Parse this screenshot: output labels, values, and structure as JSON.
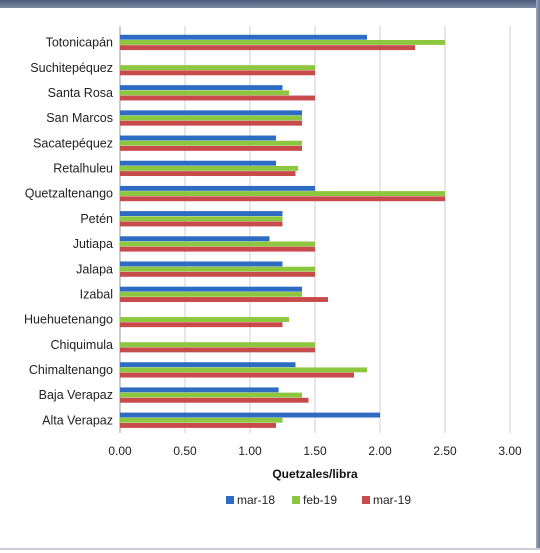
{
  "chart_data": {
    "type": "bar",
    "orientation": "horizontal",
    "categories": [
      "Totonicapán",
      "Suchitepéquez",
      "Santa Rosa",
      "San Marcos",
      "Sacatepéquez",
      "Retalhuleu",
      "Quetzaltenango",
      "Petén",
      "Jutiapa",
      "Jalapa",
      "Izabal",
      "Huehuetenango",
      "Chiquimula",
      "Chimaltenango",
      "Baja Verapaz",
      "Alta Verapaz"
    ],
    "series": [
      {
        "name": "mar-18",
        "color": "#2e6cc4",
        "values": [
          1.9,
          null,
          1.25,
          1.4,
          1.2,
          1.2,
          1.5,
          1.25,
          1.15,
          1.25,
          1.4,
          null,
          null,
          1.35,
          1.22,
          2.0
        ]
      },
      {
        "name": "feb-19",
        "color": "#8dc63f",
        "values": [
          2.5,
          1.5,
          1.3,
          1.4,
          1.4,
          1.37,
          2.5,
          1.25,
          1.5,
          1.5,
          1.4,
          1.3,
          1.5,
          1.9,
          1.4,
          1.25
        ]
      },
      {
        "name": "mar-19",
        "color": "#c84b4b",
        "values": [
          2.27,
          1.5,
          1.5,
          1.4,
          1.4,
          1.35,
          2.5,
          1.25,
          1.5,
          1.5,
          1.6,
          1.25,
          1.5,
          1.8,
          1.45,
          1.2
        ]
      }
    ],
    "xlim": [
      0,
      3.0
    ],
    "ticks": [
      "0.00",
      "0.50",
      "1.00",
      "1.50",
      "2.00",
      "2.50",
      "3.00"
    ],
    "tick_values": [
      0,
      0.5,
      1.0,
      1.5,
      2.0,
      2.5,
      3.0
    ],
    "xlabel": "Quetzales/libra",
    "grid": true,
    "legend_position": "bottom"
  }
}
